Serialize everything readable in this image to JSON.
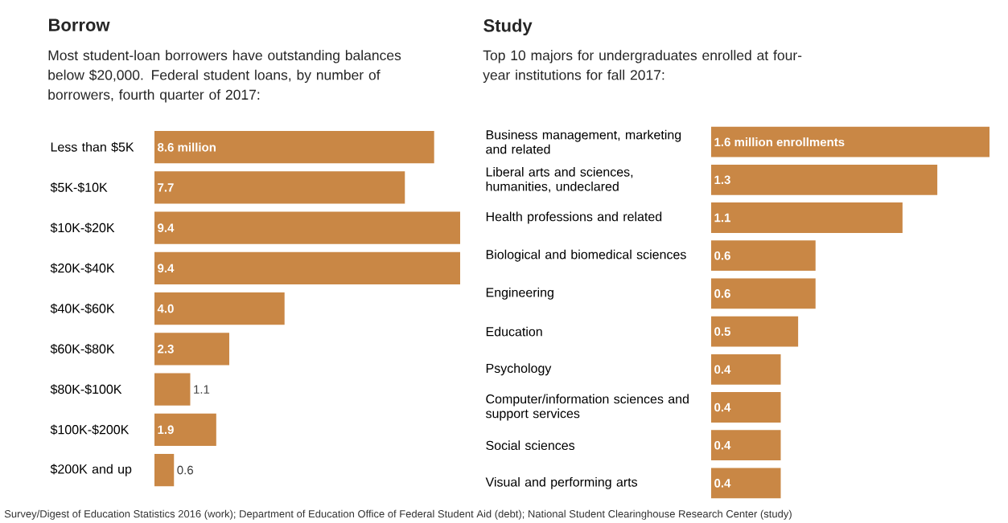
{
  "chart_data": [
    {
      "type": "bar",
      "orientation": "horizontal",
      "title": "Borrow",
      "subtitle": "Most student-loan borrowers have outstanding balances below $20,000. Federal student loans, by number of borrowers, fourth quarter of 2017:",
      "categories": [
        "Less than $5K",
        "$5K-$10K",
        "$10K-$20K",
        "$20K-$40K",
        "$40K-$60K",
        "$60K-$80K",
        "$80K-$100K",
        "$100K-$200K",
        "$200K and up"
      ],
      "values": [
        8.6,
        7.7,
        9.4,
        9.4,
        4.0,
        2.3,
        1.1,
        1.9,
        0.6
      ],
      "value_labels": [
        "8.6 million",
        "7.7",
        "9.4",
        "9.4",
        "4.0",
        "2.3",
        "1.1",
        "1.9",
        "0.6"
      ],
      "color": "#c98745",
      "annotations": [
        "Survey/Digest of Education Statistics 2016 (work); Department of Education Office of Federal Student Aid (debt); National Student Clearinghouse Research Center (study)"
      ]
    },
    {
      "type": "bar",
      "orientation": "horizontal",
      "title": "Study",
      "subtitle": "Top 10 majors for undergraduates enrolled at four-year institutions for fall 2017:",
      "categories": [
        "Business management, marketing and related",
        "Liberal arts and sciences, humanities, undeclared",
        "Health professions and related",
        "Biological and biomedical sciences",
        "Engineering",
        "Education",
        "Psychology",
        "Computer/information sciences and support services",
        "Social sciences",
        "Visual and performing arts"
      ],
      "values": [
        1.6,
        1.3,
        1.1,
        0.6,
        0.6,
        0.5,
        0.4,
        0.4,
        0.4,
        0.4
      ],
      "value_labels": [
        "1.6 million enrollments",
        "1.3",
        "1.1",
        "0.6",
        "0.6",
        "0.5",
        "0.4",
        "0.4",
        "0.4",
        "0.4"
      ],
      "color": "#c98745"
    }
  ]
}
